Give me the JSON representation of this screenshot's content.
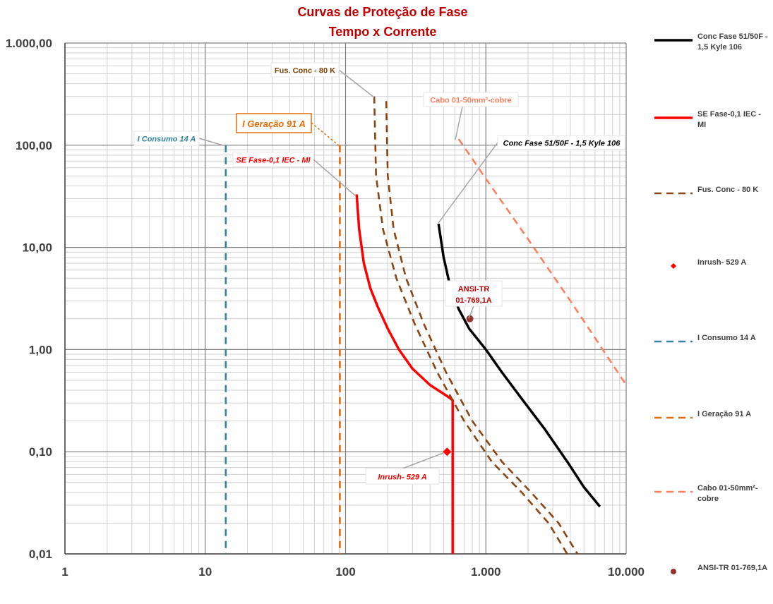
{
  "chart_data": {
    "type": "line",
    "title": "Curvas de Proteção de Fase",
    "subtitle": "Tempo x Corrente",
    "x_scale": "log",
    "y_scale": "log",
    "xlim": [
      1,
      10000
    ],
    "ylim": [
      0.01,
      1000
    ],
    "x_ticks": [
      {
        "value": 1,
        "label": "1"
      },
      {
        "value": 10,
        "label": "10"
      },
      {
        "value": 100,
        "label": "100"
      },
      {
        "value": 1000,
        "label": "1.000"
      },
      {
        "value": 10000,
        "label": "10.000"
      }
    ],
    "y_ticks": [
      {
        "value": 0.01,
        "label": "0,01"
      },
      {
        "value": 0.1,
        "label": "0,10"
      },
      {
        "value": 1,
        "label": "1,00"
      },
      {
        "value": 10,
        "label": "10,00"
      },
      {
        "value": 100,
        "label": "100,00"
      },
      {
        "value": 1000,
        "label": "1.000,00"
      }
    ],
    "grid": true,
    "legend_position": "right",
    "series": [
      {
        "name": "Conc Fase 51/50F - 1,5 Kyle 106",
        "color": "#000000",
        "style": "solid",
        "points": [
          [
            460,
            17
          ],
          [
            500,
            8
          ],
          [
            560,
            4
          ],
          [
            640,
            2.5
          ],
          [
            760,
            1.6
          ],
          [
            1000,
            1.0
          ],
          [
            1300,
            0.6
          ],
          [
            1800,
            0.33
          ],
          [
            2600,
            0.17
          ],
          [
            3800,
            0.08
          ],
          [
            5000,
            0.045
          ],
          [
            6500,
            0.029
          ]
        ]
      },
      {
        "name": "SE Fase-0,1 IEC - MI",
        "color": "#ff0000",
        "style": "solid",
        "points": [
          [
            120,
            33
          ],
          [
            125,
            15
          ],
          [
            135,
            7
          ],
          [
            150,
            4
          ],
          [
            170,
            2.6
          ],
          [
            200,
            1.6
          ],
          [
            240,
            1.0
          ],
          [
            300,
            0.65
          ],
          [
            400,
            0.45
          ],
          [
            530,
            0.35
          ],
          [
            580,
            0.32
          ],
          [
            580,
            0.01
          ]
        ]
      },
      {
        "name": "Fus. Conc - 80 K",
        "color": "#8b4513",
        "style": "dashed",
        "points": [
          [
            160,
            300
          ],
          [
            165,
            50
          ],
          [
            185,
            15
          ],
          [
            230,
            5
          ],
          [
            310,
            1.8
          ],
          [
            450,
            0.6
          ],
          [
            700,
            0.2
          ],
          [
            1100,
            0.08
          ],
          [
            1800,
            0.04
          ],
          [
            2800,
            0.02
          ],
          [
            3800,
            0.01
          ]
        ],
        "points_max": [
          [
            195,
            270
          ],
          [
            200,
            50
          ],
          [
            220,
            15
          ],
          [
            270,
            5
          ],
          [
            360,
            1.8
          ],
          [
            520,
            0.6
          ],
          [
            800,
            0.2
          ],
          [
            1300,
            0.08
          ],
          [
            2100,
            0.04
          ],
          [
            3300,
            0.02
          ],
          [
            4500,
            0.01
          ]
        ]
      },
      {
        "name": "Inrush- 529 A",
        "color": "#ff0000",
        "style": "marker",
        "points": [
          [
            529,
            0.1
          ]
        ]
      },
      {
        "name": "I Consumo 14 A",
        "color": "#31849b",
        "style": "dashed",
        "points": [
          [
            14,
            100
          ],
          [
            14,
            0.01
          ]
        ]
      },
      {
        "name": "I Geração 91 A",
        "color": "#e46c0a",
        "style": "dashed",
        "points": [
          [
            91,
            100
          ],
          [
            91,
            0.01
          ]
        ]
      },
      {
        "name": "Cabo 01-50mm²-cobre",
        "color": "#ff7f5f",
        "style": "dashed",
        "points": [
          [
            640,
            115
          ],
          [
            1000,
            47
          ],
          [
            2000,
            12
          ],
          [
            4000,
            3
          ],
          [
            6000,
            1.3
          ],
          [
            10000,
            0.45
          ]
        ]
      },
      {
        "name": "ANSI-TR 01-769,1A",
        "color": "#943634",
        "style": "marker",
        "points": [
          [
            769.1,
            2
          ]
        ]
      }
    ],
    "annotations": [
      {
        "text": "Fus. Conc - 80 K",
        "color": "#7f3f00",
        "italic": false
      },
      {
        "text": "Cabo 01-50mm²-cobre",
        "color": "#ff7f5f",
        "italic": false
      },
      {
        "text": "I Geração 91 A",
        "color": "#e46c0a",
        "italic": true
      },
      {
        "text": "I Consumo 14 A",
        "color": "#31849b",
        "italic": true
      },
      {
        "text": "Conc Fase 51/50F - 1,5 Kyle 106",
        "color": "#000000",
        "italic": true
      },
      {
        "text": "SE Fase-0,1 IEC - MI",
        "color": "#ff0000",
        "italic": true
      },
      {
        "text": "ANSI-TR\n01-769,1A",
        "color": "#c00000",
        "italic": false
      },
      {
        "text": "Inrush- 529 A",
        "color": "#ff0000",
        "italic": true
      }
    ],
    "legend": [
      {
        "label": "Conc Fase 51/50F - 1,5 Kyle 106",
        "color": "#000000",
        "type": "line"
      },
      {
        "label": "SE Fase-0,1 IEC - MI",
        "color": "#ff0000",
        "type": "line"
      },
      {
        "label": "Fus. Conc - 80 K",
        "color": "#8b4513",
        "type": "dash"
      },
      {
        "label": "Inrush- 529 A",
        "color": "#ff0000",
        "type": "diamond"
      },
      {
        "label": "I Consumo 14 A",
        "color": "#31849b",
        "type": "dash"
      },
      {
        "label": "I Geração 91 A",
        "color": "#e46c0a",
        "type": "dash"
      },
      {
        "label": "Cabo 01-50mm²-cobre",
        "color": "#ff7f5f",
        "type": "dash"
      },
      {
        "label": "ANSI-TR 01-769,1A",
        "color": "#943634",
        "type": "circle"
      }
    ]
  }
}
